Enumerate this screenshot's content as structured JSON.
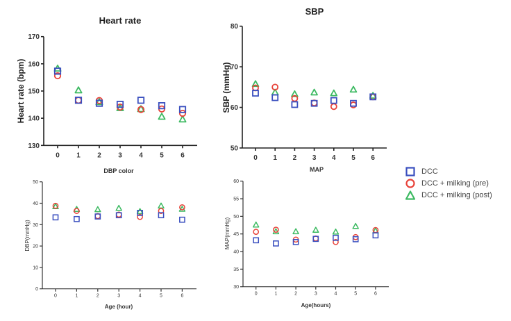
{
  "series_styles": [
    {
      "name": "DCC",
      "marker": "square",
      "color": "#3a4fbf"
    },
    {
      "name": "DCC + milking (pre)",
      "marker": "circle",
      "color": "#e8433a"
    },
    {
      "name": "DCC + milking (post)",
      "marker": "triangle",
      "color": "#3dba62"
    }
  ],
  "legend": {
    "placement": "right",
    "items": [
      {
        "label": "DCC",
        "marker": "square",
        "color": "#3a4fbf"
      },
      {
        "label": "DCC + milking (pre)",
        "marker": "circle",
        "color": "#e8433a"
      },
      {
        "label": "DCC + milking (post)",
        "marker": "triangle",
        "color": "#3dba62"
      }
    ]
  },
  "chart_data": [
    {
      "id": "heart-rate",
      "type": "scatter",
      "title": "Heart rate",
      "xlabel": "",
      "ylabel": "Heart rate (bpm)",
      "x": [
        0,
        1,
        2,
        3,
        4,
        5,
        6
      ],
      "xticks": [
        "0",
        "1",
        "2",
        "3",
        "4",
        "5",
        "6"
      ],
      "ylim": [
        130,
        170
      ],
      "yticks": [
        130,
        140,
        150,
        160,
        170
      ],
      "grid": false,
      "series": [
        {
          "name": "DCC",
          "values": [
            157.3,
            146.6,
            145.5,
            145.1,
            146.6,
            144.6,
            143.2
          ]
        },
        {
          "name": "DCC + milking (pre)",
          "values": [
            155.6,
            146.6,
            146.5,
            144.1,
            143.2,
            143.4,
            141.8
          ]
        },
        {
          "name": "DCC + milking (post)",
          "values": [
            158.3,
            150.3,
            146.0,
            143.8,
            143.4,
            140.6,
            139.6
          ]
        }
      ]
    },
    {
      "id": "sbp",
      "type": "scatter",
      "title": "SBP",
      "xlabel": "",
      "ylabel": "SBP (mmHg)",
      "x": [
        0,
        1,
        2,
        3,
        4,
        5,
        6
      ],
      "xticks": [
        "0",
        "1",
        "2",
        "3",
        "4",
        "5",
        "6"
      ],
      "ylim": [
        50,
        80
      ],
      "yticks": [
        50,
        60,
        70,
        80
      ],
      "grid": false,
      "series": [
        {
          "name": "DCC",
          "values": [
            63.5,
            62.4,
            60.7,
            61.0,
            61.7,
            61.0,
            62.6
          ]
        },
        {
          "name": "DCC + milking (pre)",
          "values": [
            64.8,
            65.0,
            62.2,
            61.1,
            60.2,
            60.6,
            62.6
          ]
        },
        {
          "name": "DCC + milking (post)",
          "values": [
            65.8,
            63.7,
            63.3,
            63.7,
            63.5,
            64.4,
            62.9
          ]
        }
      ]
    },
    {
      "id": "dbp",
      "type": "scatter",
      "title": "DBP color",
      "xlabel": "Age (hour)",
      "ylabel": "DBP(mmHg)",
      "x": [
        0,
        1,
        2,
        3,
        4,
        5,
        6
      ],
      "xticks": [
        "0",
        "1",
        "2",
        "3",
        "4",
        "5",
        "6"
      ],
      "ylim": [
        0,
        50
      ],
      "yticks": [
        0,
        10,
        20,
        30,
        40,
        50
      ],
      "grid": false,
      "series": [
        {
          "name": "DCC",
          "values": [
            33.4,
            32.6,
            33.8,
            34.4,
            35.5,
            34.4,
            32.3
          ]
        },
        {
          "name": "DCC + milking (pre)",
          "values": [
            38.8,
            36.4,
            34.0,
            34.7,
            33.6,
            36.4,
            38.1
          ]
        },
        {
          "name": "DCC + milking (post)",
          "values": [
            38.5,
            37.2,
            37.1,
            37.7,
            36.2,
            38.8,
            37.3
          ]
        }
      ]
    },
    {
      "id": "map",
      "type": "scatter",
      "title": "MAP",
      "xlabel": "Age(hours)",
      "ylabel": "MAP(mmHg)",
      "x": [
        0,
        1,
        2,
        3,
        4,
        5,
        6
      ],
      "xticks": [
        "0",
        "1",
        "2",
        "3",
        "4",
        "5",
        "6"
      ],
      "ylim": [
        30,
        60
      ],
      "yticks": [
        30,
        35,
        40,
        45,
        50,
        55,
        60
      ],
      "grid": false,
      "series": [
        {
          "name": "DCC",
          "values": [
            43.2,
            42.3,
            42.7,
            43.6,
            43.9,
            43.5,
            44.6
          ]
        },
        {
          "name": "DCC + milking (pre)",
          "values": [
            45.6,
            46.2,
            43.4,
            43.7,
            42.7,
            44.1,
            46.1
          ]
        },
        {
          "name": "DCC + milking (post)",
          "values": [
            47.6,
            45.7,
            45.7,
            46.1,
            45.6,
            47.2,
            45.9
          ]
        }
      ]
    }
  ]
}
